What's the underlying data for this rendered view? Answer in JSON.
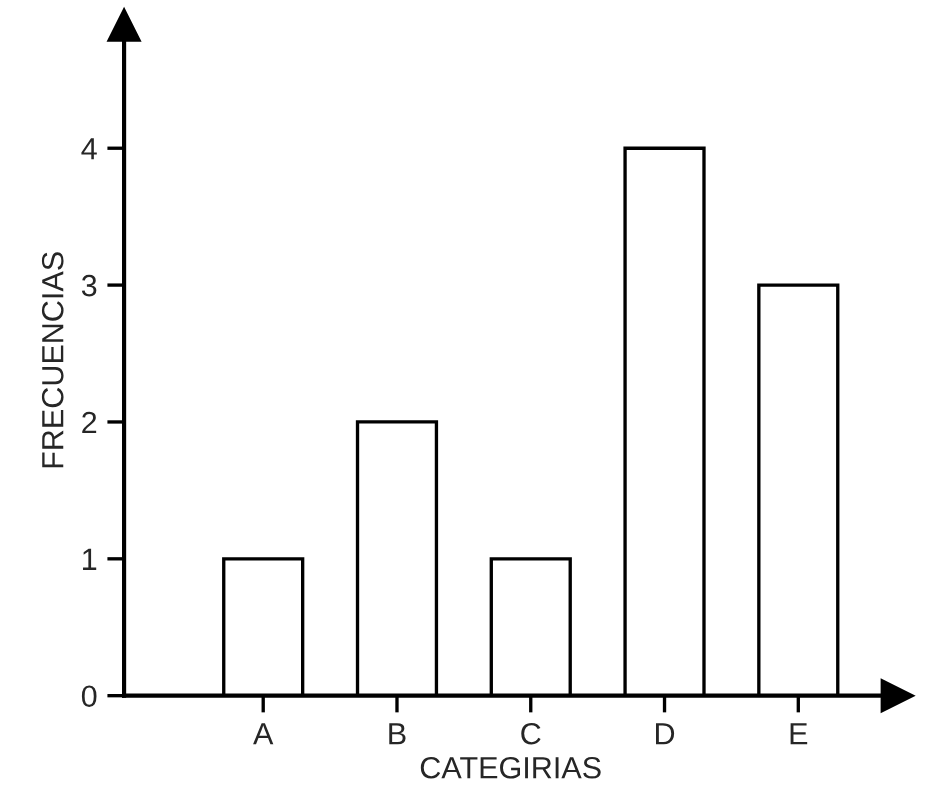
{
  "chart_data": {
    "type": "bar",
    "xlabel": "CATEGIRIAS",
    "ylabel": "FRECUENCIAS",
    "categories": [
      "A",
      "B",
      "C",
      "D",
      "E"
    ],
    "values": [
      1,
      2,
      1,
      4,
      3
    ],
    "color": "#ffffff",
    "ylim": [
      0,
      4.9
    ],
    "yticks": [
      0,
      1,
      2,
      3,
      4
    ],
    "grid": false
  }
}
